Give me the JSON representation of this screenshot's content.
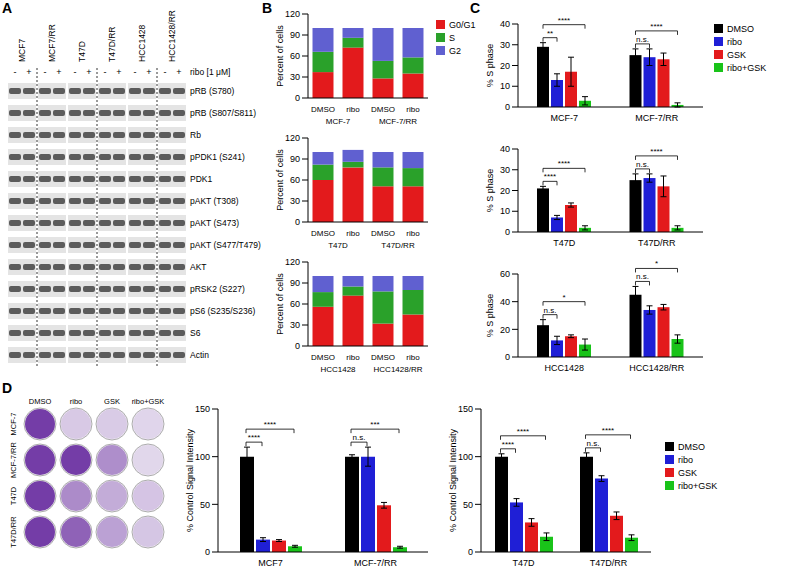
{
  "panel_labels": [
    "A",
    "B",
    "C",
    "D"
  ],
  "western_blot": {
    "cell_lines": [
      "MCF7",
      "MCF7/RR",
      "T47D",
      "T47D/RR",
      "HCC1428",
      "HCC1428/RR"
    ],
    "treatment": "ribo [1 μM]",
    "lanes": [
      "-",
      "+"
    ],
    "proteins": [
      "pRB (S780)",
      "pRB (S807/S811)",
      "Rb",
      "pPDK1 (S241)",
      "PDK1",
      "pAKT (T308)",
      "pAKT (S473)",
      "pAKT (S477/T479)",
      "AKT",
      "pRSK2 (S227)",
      "pS6 (S235/S236)",
      "S6",
      "Actin"
    ]
  },
  "crystal_violet": {
    "columns": [
      "DMSO",
      "ribo",
      "GSK",
      "ribo+GSK"
    ],
    "rows": [
      "MCF-7",
      "MCF-7/RR",
      "T47D",
      "T47D/RR"
    ]
  },
  "chart_data": [
    {
      "type": "bar",
      "stacked": true,
      "categories": [
        "DMSO",
        "ribo",
        "DMSO",
        "ribo"
      ],
      "groups": [
        "MCF-7",
        "MCF-7/RR"
      ],
      "series": [
        {
          "name": "G0/G1",
          "color": "#e31a1c",
          "values": [
            37,
            72,
            28,
            35
          ]
        },
        {
          "name": "S",
          "color": "#2aa12a",
          "values": [
            29,
            14,
            25,
            23
          ]
        },
        {
          "name": "G2",
          "color": "#6060d0",
          "values": [
            34,
            14,
            47,
            42
          ]
        }
      ],
      "ylim": [
        0,
        120
      ],
      "yticks": [
        0,
        30,
        60,
        90,
        120
      ],
      "y_label": "Percent of cells",
      "legend": "right"
    },
    {
      "type": "bar",
      "stacked": true,
      "categories": [
        "DMSO",
        "ribo",
        "DMSO",
        "ribo"
      ],
      "groups": [
        "T47D",
        "T47D/RR"
      ],
      "series": [
        {
          "name": "G0/G1",
          "color": "#e31a1c",
          "values": [
            60,
            78,
            51,
            51
          ]
        },
        {
          "name": "S",
          "color": "#2aa12a",
          "values": [
            22,
            8,
            27,
            26
          ]
        },
        {
          "name": "G2",
          "color": "#6060d0",
          "values": [
            18,
            17,
            22,
            23
          ]
        }
      ],
      "ylim": [
        0,
        120
      ],
      "yticks": [
        0,
        30,
        60,
        90,
        120
      ],
      "y_label": "Percent of cells"
    },
    {
      "type": "bar",
      "stacked": true,
      "categories": [
        "DMSO",
        "ribo",
        "DMSO",
        "ribo"
      ],
      "groups": [
        "HCC1428",
        "HCC1428/RR"
      ],
      "series": [
        {
          "name": "G0/G1",
          "color": "#e31a1c",
          "values": [
            56,
            72,
            32,
            45
          ]
        },
        {
          "name": "S",
          "color": "#2aa12a",
          "values": [
            21,
            13,
            46,
            35
          ]
        },
        {
          "name": "G2",
          "color": "#6060d0",
          "values": [
            23,
            15,
            22,
            20
          ]
        }
      ],
      "ylim": [
        0,
        120
      ],
      "yticks": [
        0,
        30,
        60,
        90,
        120
      ],
      "y_label": "Percent of cells"
    },
    {
      "type": "bar",
      "categories": [
        "MCF-7",
        "MCF-7/RR"
      ],
      "series": [
        {
          "name": "DMSO",
          "color": "#000000",
          "values": [
            29,
            25
          ],
          "errors": [
            2,
            3
          ]
        },
        {
          "name": "ribo",
          "color": "#1f1fd6",
          "values": [
            13,
            24
          ],
          "errors": [
            3,
            4
          ]
        },
        {
          "name": "GSK",
          "color": "#e31a1c",
          "values": [
            17,
            23
          ],
          "errors": [
            7,
            3
          ]
        },
        {
          "name": "ribo+GSK",
          "color": "#19c319",
          "values": [
            3,
            1
          ],
          "errors": [
            2,
            1
          ]
        }
      ],
      "ylim": [
        0,
        40
      ],
      "yticks": [
        0,
        10,
        20,
        30,
        40
      ],
      "y_label": "% S phase",
      "legend": "right",
      "comparisons": [
        {
          "category": "MCF-7",
          "from": "DMSO",
          "to": "ribo",
          "label": "**"
        },
        {
          "category": "MCF-7",
          "from": "DMSO",
          "to": "ribo+GSK",
          "label": "****"
        },
        {
          "category": "MCF-7/RR",
          "from": "DMSO",
          "to": "ribo",
          "label": "n.s."
        },
        {
          "category": "MCF-7/RR",
          "from": "DMSO",
          "to": "ribo+GSK",
          "label": "****"
        }
      ]
    },
    {
      "type": "bar",
      "categories": [
        "T47D",
        "T47D/RR"
      ],
      "series": [
        {
          "name": "DMSO",
          "color": "#000000",
          "values": [
            21,
            25
          ],
          "errors": [
            1,
            3
          ]
        },
        {
          "name": "ribo",
          "color": "#1f1fd6",
          "values": [
            7,
            26
          ],
          "errors": [
            1,
            2
          ]
        },
        {
          "name": "GSK",
          "color": "#e31a1c",
          "values": [
            13,
            22
          ],
          "errors": [
            1,
            5
          ]
        },
        {
          "name": "ribo+GSK",
          "color": "#19c319",
          "values": [
            2,
            2
          ],
          "errors": [
            1,
            1
          ]
        }
      ],
      "ylim": [
        0,
        40
      ],
      "yticks": [
        0,
        10,
        20,
        30,
        40
      ],
      "y_label": "% S phase",
      "comparisons": [
        {
          "category": "T47D",
          "from": "DMSO",
          "to": "ribo",
          "label": "****"
        },
        {
          "category": "T47D",
          "from": "DMSO",
          "to": "ribo+GSK",
          "label": "****"
        },
        {
          "category": "T47D/RR",
          "from": "DMSO",
          "to": "ribo",
          "label": "n.s."
        },
        {
          "category": "T47D/RR",
          "from": "DMSO",
          "to": "ribo+GSK",
          "label": "****"
        }
      ]
    },
    {
      "type": "bar",
      "categories": [
        "HCC1428",
        "HCC1428/RR"
      ],
      "series": [
        {
          "name": "DMSO",
          "color": "#000000",
          "values": [
            23,
            45
          ],
          "errors": [
            4,
            6
          ]
        },
        {
          "name": "ribo",
          "color": "#1f1fd6",
          "values": [
            12,
            34
          ],
          "errors": [
            3,
            3
          ]
        },
        {
          "name": "GSK",
          "color": "#e31a1c",
          "values": [
            15,
            36
          ],
          "errors": [
            1,
            2
          ]
        },
        {
          "name": "ribo+GSK",
          "color": "#19c319",
          "values": [
            9,
            13
          ],
          "errors": [
            4,
            3
          ]
        }
      ],
      "ylim": [
        0,
        60
      ],
      "yticks": [
        0,
        20,
        40,
        60
      ],
      "y_label": "% S phase",
      "comparisons": [
        {
          "category": "HCC1428",
          "from": "DMSO",
          "to": "ribo",
          "label": "n.s."
        },
        {
          "category": "HCC1428",
          "from": "DMSO",
          "to": "ribo+GSK",
          "label": "*"
        },
        {
          "category": "HCC1428/RR",
          "from": "DMSO",
          "to": "ribo",
          "label": "n.s."
        },
        {
          "category": "HCC1428/RR",
          "from": "DMSO",
          "to": "ribo+GSK",
          "label": "*"
        }
      ]
    },
    {
      "type": "bar",
      "categories": [
        "MCF7",
        "MCF-7/RR"
      ],
      "series": [
        {
          "name": "DMSO",
          "color": "#000000",
          "values": [
            100,
            100
          ],
          "errors": [
            10,
            2
          ]
        },
        {
          "name": "ribo",
          "color": "#1f1fd6",
          "values": [
            13,
            100
          ],
          "errors": [
            2,
            10
          ]
        },
        {
          "name": "GSK",
          "color": "#e31a1c",
          "values": [
            12,
            49
          ],
          "errors": [
            1,
            3
          ]
        },
        {
          "name": "ribo+GSK",
          "color": "#19c319",
          "values": [
            6,
            5
          ],
          "errors": [
            1,
            1
          ]
        }
      ],
      "ylim": [
        0,
        150
      ],
      "yticks": [
        0,
        50,
        100,
        150
      ],
      "y_label": "% Control Signal Intensity",
      "comparisons": [
        {
          "category": "MCF7",
          "from": "DMSO",
          "to": "ribo",
          "label": "****"
        },
        {
          "category": "MCF7",
          "from": "DMSO",
          "to": "ribo+GSK",
          "label": "****"
        },
        {
          "category": "MCF-7/RR",
          "from": "DMSO",
          "to": "ribo",
          "label": "n.s."
        },
        {
          "category": "MCF-7/RR",
          "from": "DMSO",
          "to": "ribo+GSK",
          "label": "***"
        }
      ]
    },
    {
      "type": "bar",
      "categories": [
        "T47D",
        "T47D/RR"
      ],
      "series": [
        {
          "name": "DMSO",
          "color": "#000000",
          "values": [
            100,
            100
          ],
          "errors": [
            3,
            4
          ]
        },
        {
          "name": "ribo",
          "color": "#1f1fd6",
          "values": [
            52,
            77
          ],
          "errors": [
            4,
            3
          ]
        },
        {
          "name": "GSK",
          "color": "#e31a1c",
          "values": [
            31,
            38
          ],
          "errors": [
            4,
            4
          ]
        },
        {
          "name": "ribo+GSK",
          "color": "#19c319",
          "values": [
            16,
            15
          ],
          "errors": [
            4,
            3
          ]
        }
      ],
      "ylim": [
        0,
        150
      ],
      "yticks": [
        0,
        50,
        100,
        150
      ],
      "y_label": "% Control Signal Intensity",
      "legend": "right",
      "comparisons": [
        {
          "category": "T47D",
          "from": "DMSO",
          "to": "ribo",
          "label": "****"
        },
        {
          "category": "T47D",
          "from": "DMSO",
          "to": "ribo+GSK",
          "label": "****"
        },
        {
          "category": "T47D/RR",
          "from": "DMSO",
          "to": "ribo",
          "label": "n.s."
        },
        {
          "category": "T47D/RR",
          "from": "DMSO",
          "to": "ribo+GSK",
          "label": "****"
        }
      ]
    }
  ]
}
